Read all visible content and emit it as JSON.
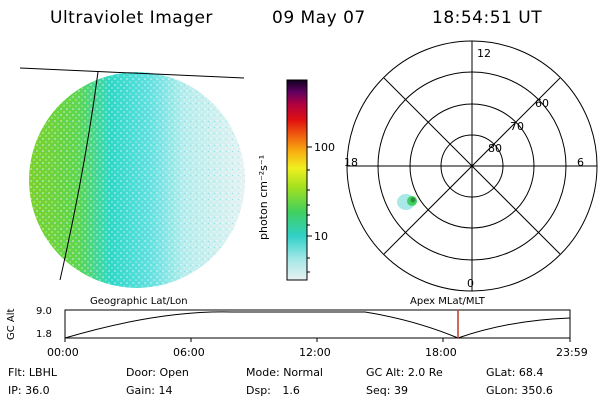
{
  "header": {
    "instrument": "Ultraviolet Imager",
    "date": "09 May 07",
    "time": "18:54:51 UT"
  },
  "colorbar": {
    "unit_label": "photon cm⁻²s⁻¹",
    "ticks": [
      "100",
      "10"
    ],
    "scale": "log"
  },
  "polar_plot": {
    "mlt_labels": [
      "12",
      "18",
      "6",
      "0"
    ],
    "lat_labels": [
      "60",
      "70",
      "80"
    ]
  },
  "timeline": {
    "left_title": "Geographic Lat/Lon",
    "right_title": "Apex MLat/MLT",
    "y_axis_label": "GC Alt",
    "y_ticks": [
      "9.0",
      "1.8"
    ],
    "x_ticks": [
      "00:00",
      "06:00",
      "12:00",
      "18:00",
      "23:59"
    ],
    "marker_color": "#c0392b"
  },
  "status": {
    "row1": [
      {
        "key": "Flt:",
        "val": "LBHL"
      },
      {
        "key": "Door:",
        "val": "Open"
      },
      {
        "key": "Mode:",
        "val": "Normal"
      },
      {
        "key": "GC Alt:",
        "val": "2.0 Re"
      },
      {
        "key": "GLat:",
        "val": "68.4"
      }
    ],
    "row2": [
      {
        "key": "IP:",
        "val": "36.0"
      },
      {
        "key": "Gain:",
        "val": "14"
      },
      {
        "key": "Dsp:",
        "val": "1.6"
      },
      {
        "key": "Seq:",
        "val": "39"
      },
      {
        "key": "GLon:",
        "val": "350.6"
      }
    ]
  }
}
